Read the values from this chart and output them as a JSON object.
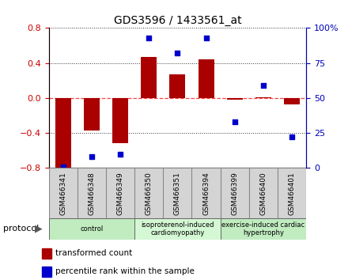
{
  "title": "GDS3596 / 1433561_at",
  "samples": [
    "GSM466341",
    "GSM466348",
    "GSM466349",
    "GSM466350",
    "GSM466351",
    "GSM466394",
    "GSM466399",
    "GSM466400",
    "GSM466401"
  ],
  "bar_values": [
    -0.8,
    -0.37,
    -0.52,
    0.47,
    0.27,
    0.44,
    -0.02,
    0.01,
    -0.07
  ],
  "scatter_values": [
    1,
    8,
    10,
    93,
    82,
    93,
    33,
    59,
    22
  ],
  "groups": [
    {
      "label": "control",
      "start": 0,
      "end": 3
    },
    {
      "label": "isoproterenol-induced\ncardiomyopathy",
      "start": 3,
      "end": 6
    },
    {
      "label": "exercise-induced cardiac\nhypertrophy",
      "start": 6,
      "end": 9
    }
  ],
  "group_colors": [
    "#c0ecc0",
    "#d4f7d4",
    "#c0ecc0"
  ],
  "ylim_left": [
    -0.8,
    0.8
  ],
  "ylim_right": [
    0,
    100
  ],
  "yticks_left": [
    -0.8,
    -0.4,
    0.0,
    0.4,
    0.8
  ],
  "yticks_right": [
    0,
    25,
    50,
    75,
    100
  ],
  "bar_color": "#AA0000",
  "scatter_color": "#0000CC",
  "zero_line_color": "#FF4444",
  "grid_color": "#333333",
  "plot_bg_color": "#ffffff",
  "legend_bar_label": "transformed count",
  "legend_scatter_label": "percentile rank within the sample",
  "protocol_label": "protocol",
  "ylabel_left_color": "#CC0000",
  "ylabel_right_color": "#0000BB",
  "sample_bg_color": "#d4d4d4",
  "sample_border_color": "#888888"
}
